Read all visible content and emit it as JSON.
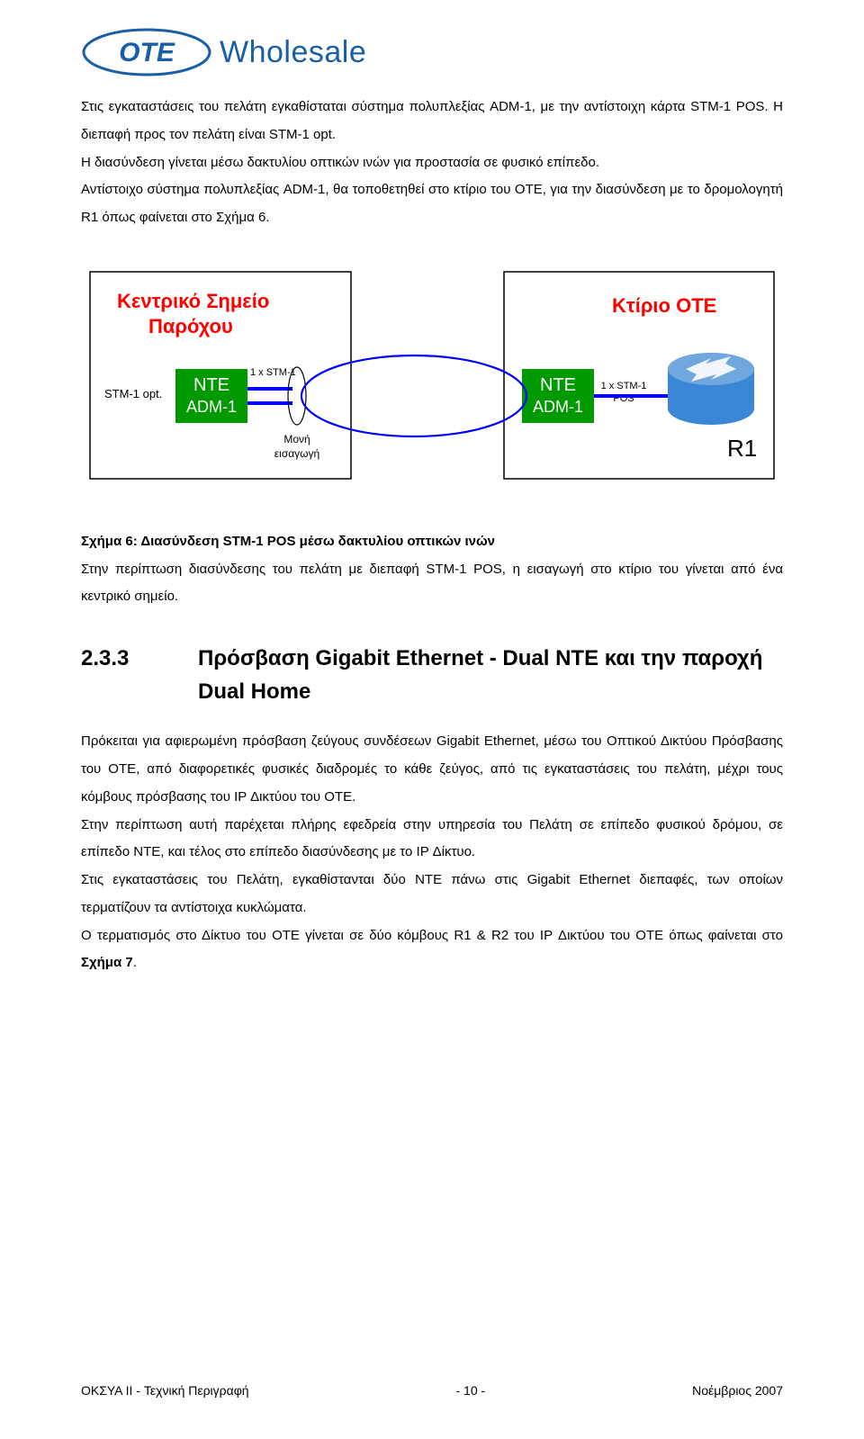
{
  "logo": {
    "oval_text": "OTE",
    "brand": "Wholesale"
  },
  "para1": "Στις εγκαταστάσεις του πελάτη εγκαθίσταται σύστημα πολυπλεξίας ADM-1, με την αντίστοιχη κάρτα STM-1 POS. Η διεπαφή προς τον πελάτη είναι STM-1 opt.",
  "para2": "Η διασύνδεση γίνεται μέσω δακτυλίου οπτικών ινών για προστασία σε φυσικό επίπεδο.",
  "para3": "Αντίστοιχο σύστημα πολυπλεξίας ADM-1, θα τοποθετηθεί στο κτίριο του ΟΤΕ, για την διασύνδεση με το δρομολογητή R1 όπως φαίνεται στο Σχήμα 6.",
  "diagram": {
    "left_title": "Κεντρικό Σημείο Παρόχου",
    "right_title": "Κτίριο ΟΤΕ",
    "stm_opt_label": "STM-1 opt.",
    "nte_top": "NTE",
    "nte_bottom": "ADM-1",
    "link_label": "1 x STM-1",
    "insert_top": "Μονή",
    "insert_bottom": "εισαγωγή",
    "pos_top": "1 x STM-1",
    "pos_bottom": "POS",
    "router": "R1",
    "colors": {
      "box_stroke": "#000000",
      "title_red": "#ff0000",
      "nte_fill": "#009a00",
      "nte_text": "#ffffff",
      "ring_stroke": "#0000ff",
      "router_fill": "#3a87d6",
      "router_light": "#6fa7de",
      "router_arrow": "#ffffff",
      "thin_stroke": "#000000"
    }
  },
  "caption_bold": "Σχήμα 6: Διασύνδεση STM-1 POS μέσω δακτυλίου οπτικών ινών",
  "caption_rest": "Στην περίπτωση διασύνδεσης του πελάτη με διεπαφή STM-1 POS, η εισαγωγή στο κτίριο του γίνεται από ένα κεντρικό σημείο.",
  "heading_num": "2.3.3",
  "heading_txt": "Πρόσβαση Gigabit Ethernet - Dual NTE και την παροχή Dual Home",
  "p4": "Πρόκειται για αφιερωμένη πρόσβαση ζεύγους συνδέσεων Gigabit Ethernet, μέσω του Οπτικού Δικτύου Πρόσβασης του ΟΤΕ, από διαφορετικές φυσικές διαδρομές το κάθε ζεύγος, από τις εγκαταστάσεις του πελάτη, μέχρι τους κόμβους πρόσβασης του IP Δικτύου του ΟΤΕ.",
  "p5": "Στην περίπτωση αυτή παρέχεται πλήρης εφεδρεία στην υπηρεσία του Πελάτη σε επίπεδο φυσικού δρόμου, σε επίπεδο NTE, και τέλος στο επίπεδο διασύνδεσης με το IP Δίκτυο.",
  "p6": "Στις εγκαταστάσεις του Πελάτη, εγκαθίστανται δύο NTE πάνω στις Gigabit Ethernet διεπαφές, των οποίων τερματίζουν τα αντίστοιχα κυκλώματα.",
  "p7_a": "Ο τερματισμός στο Δίκτυο του ΟΤΕ γίνεται σε δύο κόμβους R1 & R2 του IP Δικτύου του ΟΤΕ όπως φαίνεται στο ",
  "p7_b": "Σχήμα 7",
  "p7_c": ".",
  "footer_left": "ΟΚΣΥΑ II  - Τεχνική Περιγραφή",
  "footer_center": "- 10 -",
  "footer_right": "Νοέμβριος  2007"
}
